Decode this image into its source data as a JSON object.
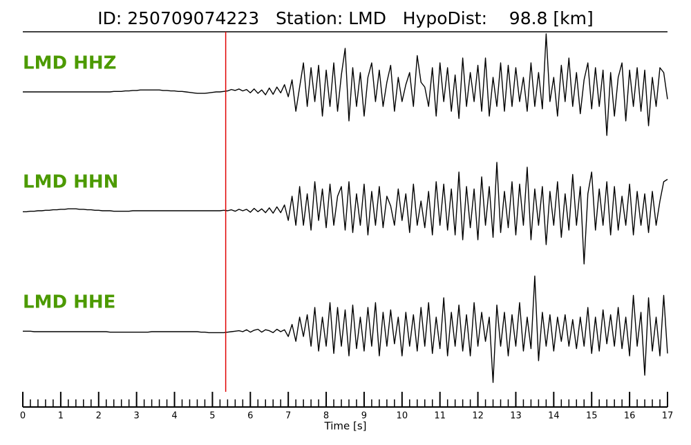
{
  "chart_data": {
    "type": "line",
    "title": "ID: 250709074223   Station: LMD   HypoDist:    98.8 [km]",
    "xlabel": "Time [s]",
    "xlim": [
      0,
      17
    ],
    "xticks": [
      0,
      1,
      2,
      3,
      4,
      5,
      6,
      7,
      8,
      9,
      10,
      11,
      12,
      13,
      14,
      15,
      16,
      17
    ],
    "xminor_step": 0.2,
    "ylim": [
      -1.2,
      1.2
    ],
    "pick": 5.35,
    "pick_color": "#e00000",
    "label_color": "#4c9a00",
    "x": [
      0,
      0.1,
      0.2,
      0.3,
      0.4,
      0.5,
      0.6,
      0.7,
      0.8,
      0.9,
      1,
      1.1,
      1.2,
      1.3,
      1.4,
      1.5,
      1.6,
      1.7,
      1.8,
      1.9,
      2,
      2.1,
      2.2,
      2.3,
      2.4,
      2.5,
      2.6,
      2.7,
      2.8,
      2.9,
      3,
      3.1,
      3.2,
      3.3,
      3.4,
      3.5,
      3.6,
      3.7,
      3.8,
      3.9,
      4,
      4.1,
      4.2,
      4.3,
      4.4,
      4.5,
      4.6,
      4.7,
      4.8,
      4.9,
      5,
      5.1,
      5.2,
      5.3,
      5.4,
      5.5,
      5.6,
      5.7,
      5.8,
      5.9,
      6,
      6.1,
      6.2,
      6.3,
      6.4,
      6.5,
      6.6,
      6.7,
      6.8,
      6.9,
      7,
      7.1,
      7.2,
      7.3,
      7.4,
      7.5,
      7.6,
      7.7,
      7.8,
      7.9,
      8,
      8.1,
      8.2,
      8.3,
      8.4,
      8.5,
      8.6,
      8.7,
      8.8,
      8.9,
      9,
      9.1,
      9.2,
      9.3,
      9.4,
      9.5,
      9.6,
      9.7,
      9.8,
      9.9,
      10,
      10.1,
      10.2,
      10.3,
      10.4,
      10.5,
      10.6,
      10.7,
      10.8,
      10.9,
      11,
      11.1,
      11.2,
      11.3,
      11.4,
      11.5,
      11.6,
      11.7,
      11.8,
      11.9,
      12,
      12.1,
      12.2,
      12.3,
      12.4,
      12.5,
      12.6,
      12.7,
      12.8,
      12.9,
      13,
      13.1,
      13.2,
      13.3,
      13.4,
      13.5,
      13.6,
      13.7,
      13.8,
      13.9,
      14,
      14.1,
      14.2,
      14.3,
      14.4,
      14.5,
      14.6,
      14.7,
      14.8,
      14.9,
      15,
      15.1,
      15.2,
      15.3,
      15.4,
      15.5,
      15.6,
      15.7,
      15.8,
      15.9,
      16,
      16.1,
      16.2,
      16.3,
      16.4,
      16.5,
      16.6,
      16.7,
      16.8,
      16.9,
      17
    ],
    "series": [
      {
        "name": "LMD HHZ",
        "color": "#000000",
        "values": [
          0,
          0,
          0,
          0,
          0,
          0,
          0,
          0,
          0,
          0,
          0,
          0,
          0,
          0,
          0,
          0,
          0,
          0,
          0,
          0,
          0,
          0,
          0,
          0,
          0.01,
          0.01,
          0.01,
          0.02,
          0.02,
          0.03,
          0.03,
          0.04,
          0.04,
          0.04,
          0.04,
          0.04,
          0.04,
          0.03,
          0.03,
          0.02,
          0.02,
          0.01,
          0.01,
          0,
          -0.01,
          -0.02,
          -0.03,
          -0.03,
          -0.03,
          -0.02,
          -0.01,
          0,
          0,
          0.01,
          0.02,
          0.05,
          0.03,
          0.06,
          0.02,
          0.05,
          -0.02,
          0.06,
          -0.03,
          0.04,
          -0.06,
          0.08,
          -0.05,
          0.1,
          -0.02,
          0.15,
          -0.1,
          0.25,
          -0.4,
          0.1,
          0.6,
          -0.3,
          0.5,
          -0.2,
          0.55,
          -0.5,
          0.45,
          -0.3,
          0.6,
          -0.4,
          0.35,
          0.9,
          -0.6,
          0.5,
          -0.3,
          0.4,
          -0.5,
          0.3,
          0.6,
          -0.2,
          0.45,
          -0.3,
          0.2,
          0.55,
          -0.4,
          0.3,
          -0.2,
          0.15,
          0.4,
          -0.3,
          0.75,
          0.2,
          0.1,
          -0.3,
          0.5,
          -0.5,
          0.6,
          -0.2,
          0.5,
          -0.4,
          0.35,
          -0.55,
          0.7,
          -0.3,
          0.4,
          -0.2,
          0.55,
          -0.4,
          0.7,
          -0.5,
          0.3,
          -0.3,
          0.6,
          -0.4,
          0.55,
          -0.3,
          0.5,
          -0.2,
          0.3,
          -0.4,
          0.6,
          -0.3,
          0.4,
          -0.35,
          1.2,
          -0.2,
          0.3,
          -0.5,
          0.55,
          -0.2,
          0.7,
          -0.3,
          0.4,
          -0.45,
          0.25,
          0.6,
          -0.35,
          0.5,
          -0.3,
          0.45,
          -0.9,
          0.4,
          -0.5,
          0.3,
          0.6,
          -0.6,
          0.45,
          -0.3,
          0.5,
          -0.4,
          0.45,
          -0.7,
          0.3,
          -0.3,
          0.5,
          0.4,
          -0.15
        ]
      },
      {
        "name": "LMD HHN",
        "color": "#000000",
        "values": [
          -0.02,
          -0.02,
          -0.01,
          -0.01,
          0,
          0,
          0.01,
          0.01,
          0.02,
          0.02,
          0.03,
          0.03,
          0.04,
          0.04,
          0.04,
          0.03,
          0.03,
          0.02,
          0.02,
          0.01,
          0.01,
          0,
          0,
          0,
          -0.01,
          -0.01,
          -0.01,
          -0.01,
          -0.01,
          0,
          0,
          0,
          0,
          0,
          0,
          0,
          0,
          0,
          0,
          0,
          0,
          0,
          0,
          0,
          0,
          0,
          0,
          0,
          0,
          0,
          0,
          0,
          0,
          0.01,
          0,
          0.02,
          -0.01,
          0.03,
          0,
          0.03,
          -0.03,
          0.05,
          -0.02,
          0.04,
          -0.04,
          0.06,
          -0.05,
          0.08,
          -0.04,
          0.12,
          -0.2,
          0.3,
          -0.3,
          0.5,
          -0.3,
          0.35,
          -0.4,
          0.6,
          -0.2,
          0.45,
          -0.35,
          0.55,
          -0.3,
          0.3,
          0.5,
          -0.4,
          0.6,
          -0.45,
          0.35,
          -0.3,
          0.55,
          -0.5,
          0.4,
          -0.3,
          0.5,
          -0.35,
          0.3,
          0.1,
          -0.3,
          0.45,
          -0.2,
          0.35,
          -0.45,
          0.55,
          -0.3,
          0.2,
          -0.35,
          0.4,
          -0.5,
          0.6,
          -0.3,
          0.55,
          -0.4,
          0.45,
          -0.5,
          0.8,
          -0.6,
          0.5,
          -0.35,
          0.45,
          -0.6,
          0.7,
          -0.3,
          0.5,
          -0.55,
          1.0,
          -0.45,
          0.4,
          -0.35,
          0.6,
          -0.5,
          0.55,
          -0.3,
          0.9,
          -0.6,
          0.45,
          -0.3,
          0.5,
          -0.7,
          0.4,
          -0.3,
          0.6,
          -0.55,
          0.35,
          -0.4,
          0.75,
          -0.3,
          0.5,
          -1.1,
          0.35,
          0.8,
          -0.4,
          0.45,
          -0.3,
          0.6,
          -0.5,
          0.5,
          -0.4,
          0.3,
          -0.3,
          0.55,
          -0.5,
          0.4,
          -0.3,
          0.35,
          -0.45,
          0.4,
          -0.3,
          0.2,
          0.6,
          0.65
        ]
      },
      {
        "name": "LMD HHE",
        "color": "#000000",
        "values": [
          0.01,
          0.01,
          0.01,
          0,
          0,
          0,
          0,
          0,
          0,
          0,
          0,
          0,
          0,
          0,
          0,
          0,
          0,
          0,
          0,
          0,
          0,
          0,
          0,
          -0.01,
          -0.01,
          -0.01,
          -0.01,
          -0.01,
          -0.01,
          -0.01,
          -0.01,
          -0.01,
          -0.01,
          -0.01,
          0,
          0,
          0,
          0,
          0,
          0,
          0,
          0,
          0,
          0,
          0,
          0,
          0,
          -0.01,
          -0.01,
          -0.02,
          -0.02,
          -0.02,
          -0.02,
          -0.02,
          -0.01,
          0,
          0.01,
          0.02,
          0,
          0.04,
          -0.01,
          0.03,
          0.05,
          -0.01,
          0.04,
          0.02,
          -0.02,
          0.05,
          0,
          0.04,
          -0.1,
          0.15,
          -0.2,
          0.3,
          -0.1,
          0.35,
          -0.3,
          0.5,
          -0.4,
          0.3,
          -0.3,
          0.6,
          -0.45,
          0.5,
          -0.3,
          0.45,
          -0.5,
          0.55,
          -0.35,
          0.3,
          -0.4,
          0.5,
          -0.3,
          0.6,
          -0.5,
          0.4,
          -0.3,
          0.45,
          -0.25,
          0.3,
          -0.5,
          0.4,
          -0.3,
          0.35,
          -0.4,
          0.5,
          -0.3,
          0.6,
          -0.45,
          0.3,
          -0.35,
          0.7,
          -0.5,
          0.4,
          -0.3,
          0.55,
          -0.4,
          0.35,
          -0.5,
          0.6,
          -0.3,
          0.4,
          -0.2,
          0.3,
          -1.05,
          0.55,
          -0.3,
          0.4,
          -0.5,
          0.35,
          -0.3,
          0.6,
          -0.4,
          0.3,
          -0.35,
          1.15,
          -0.6,
          0.4,
          -0.3,
          0.35,
          -0.4,
          0.3,
          -0.2,
          0.35,
          -0.3,
          0.25,
          -0.35,
          0.3,
          -0.3,
          0.5,
          -0.45,
          0.3,
          -0.4,
          0.45,
          -0.25,
          0.35,
          -0.3,
          0.5,
          -0.35,
          0.3,
          -0.5,
          0.75,
          -0.3,
          0.4,
          -0.9,
          0.7,
          -0.4,
          0.3,
          -0.5,
          0.75,
          -0.45
        ]
      }
    ]
  }
}
